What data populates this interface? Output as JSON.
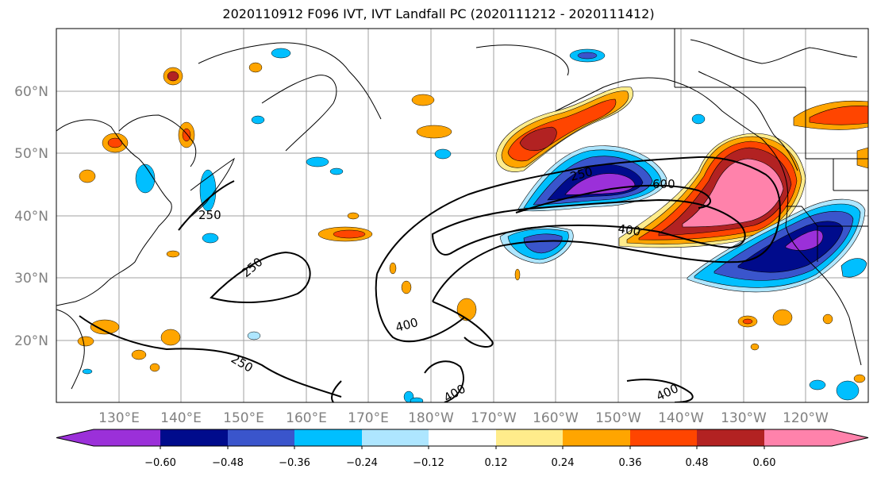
{
  "title": "2020110912 F096 IVT, IVT Landfall PC (2020111212 - 2020111412)",
  "map": {
    "lon_labels": [
      "130°E",
      "140°E",
      "150°E",
      "160°E",
      "170°E",
      "180°W",
      "170°W",
      "160°W",
      "150°W",
      "140°W",
      "130°W",
      "120°W"
    ],
    "lat_labels": [
      "60°N",
      "50°N",
      "40°N",
      "30°N",
      "20°N"
    ],
    "contour_labels": [
      "250",
      "250",
      "250",
      "400",
      "400",
      "400",
      "600",
      "250",
      "400"
    ]
  },
  "colorbar": {
    "tick_labels": [
      "−0.60",
      "−0.48",
      "−0.36",
      "−0.24",
      "−0.12",
      "0.12",
      "0.24",
      "0.36",
      "0.48",
      "0.60"
    ],
    "colors": [
      "#9b30d9",
      "#000b8c",
      "#3a55cc",
      "#00bfff",
      "#aee6ff",
      "#ffffff",
      "#ffec8b",
      "#ffa500",
      "#ff4500",
      "#b22222",
      "#ff82ab"
    ]
  }
}
